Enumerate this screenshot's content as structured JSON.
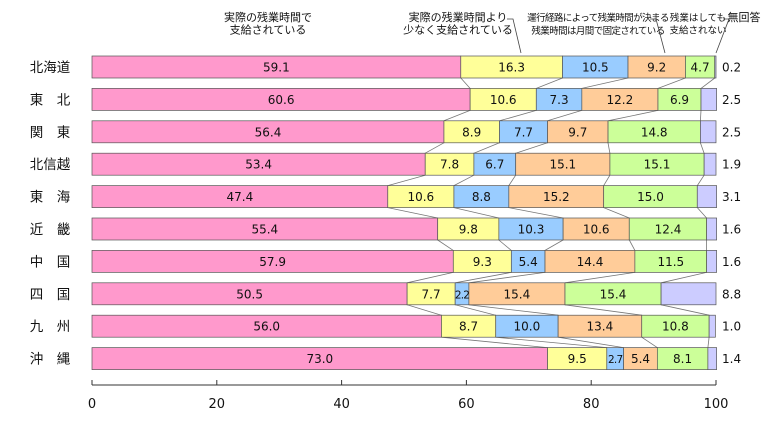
{
  "chart_data": {
    "type": "bar",
    "orientation": "horizontal",
    "stacked": true,
    "percent": true,
    "categories": [
      "北海道",
      "東　北",
      "関　東",
      "北信越",
      "東　海",
      "近　畿",
      "中　国",
      "四　国",
      "九　州",
      "沖　縄"
    ],
    "series": [
      {
        "name": "実際の残業時間で支給されている",
        "color": "#FF99CC",
        "values": [
          59.1,
          60.6,
          56.4,
          53.4,
          47.4,
          55.4,
          57.9,
          50.5,
          56.0,
          73.0
        ]
      },
      {
        "name": "実際の残業時間より少なく支給されている",
        "color": "#FFFF99",
        "values": [
          16.3,
          10.6,
          8.9,
          7.8,
          10.6,
          9.8,
          9.3,
          7.7,
          8.7,
          9.5
        ]
      },
      {
        "name": "運行経路によって残業時間が決まる",
        "color": "#99CCFF",
        "values": [
          10.5,
          7.3,
          7.7,
          6.7,
          8.8,
          10.3,
          5.4,
          2.2,
          10.0,
          2.7
        ]
      },
      {
        "name": "残業時間は月間で固定されている",
        "color": "#FFCC99",
        "values": [
          9.2,
          12.2,
          9.7,
          15.1,
          15.2,
          10.6,
          14.4,
          15.4,
          13.4,
          5.4
        ]
      },
      {
        "name": "残業はしても支給されない",
        "color": "#CCFF99",
        "values": [
          4.7,
          6.9,
          14.8,
          15.1,
          15.0,
          12.4,
          11.5,
          15.4,
          10.8,
          8.1
        ]
      },
      {
        "name": "無回答",
        "color": "#CCCCFF",
        "values": [
          0.2,
          2.5,
          2.5,
          1.9,
          3.1,
          1.6,
          1.6,
          8.8,
          1.0,
          1.4
        ]
      }
    ],
    "segment_labels": [
      [
        "59.1",
        "16.3",
        "10.5",
        "9.2",
        "4.7",
        ""
      ],
      [
        "60.6",
        "10.6",
        "7.3",
        "12.2",
        "6.9",
        ""
      ],
      [
        "56.4",
        "8.9",
        "7.7",
        "9.7",
        "14.8",
        ""
      ],
      [
        "53.4",
        "7.8",
        "6.7",
        "15.1",
        "15.1",
        ""
      ],
      [
        "47.4",
        "10.6",
        "8.8",
        "15.2",
        "15.0",
        ""
      ],
      [
        "55.4",
        "9.8",
        "10.3",
        "10.6",
        "12.4",
        ""
      ],
      [
        "57.9",
        "9.3",
        "5.4",
        "14.4",
        "11.5",
        ""
      ],
      [
        "50.5",
        "7.7",
        "2.2",
        "15.4",
        "15.4",
        ""
      ],
      [
        "56.0",
        "8.7",
        "10.0",
        "13.4",
        "10.8",
        ""
      ],
      [
        "73.0",
        "9.5",
        "2.7",
        "5.4",
        "8.1",
        ""
      ]
    ],
    "last_labels": [
      "0.2",
      "2.5",
      "2.5",
      "1.9",
      "3.1",
      "1.6",
      "1.6",
      "8.8",
      "1.0",
      "1.4"
    ],
    "legend": [
      {
        "lines": [
          "実際の残業時間で",
          "支給されている"
        ]
      },
      {
        "lines": [
          "実際の残業時間より",
          "少なく支給されている"
        ]
      },
      {
        "lines": [
          "運行経路によって残業時間が決まる",
          "残業時間は月間で固定されている"
        ]
      },
      {
        "lines": [
          "残業はしても",
          "支給されない"
        ]
      },
      {
        "lines": [
          "無回答"
        ]
      }
    ],
    "xticks": [
      "0",
      "20",
      "40",
      "60",
      "80",
      "100"
    ],
    "xlim": [
      0,
      100
    ],
    "title": "",
    "xlabel": "",
    "ylabel": "",
    "grid": false,
    "legend_placement": "top"
  }
}
